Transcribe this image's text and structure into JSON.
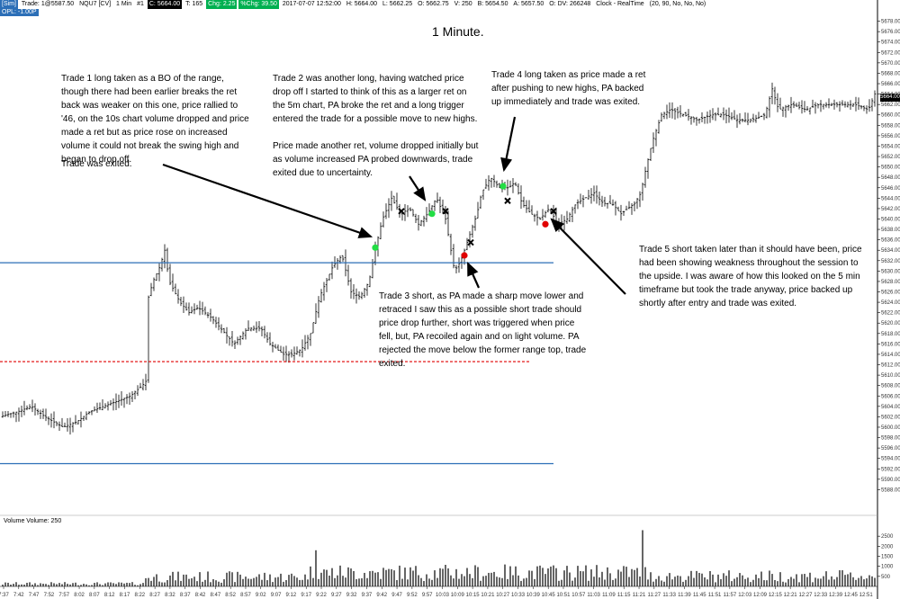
{
  "header": {
    "instrument_tag": "[Sim]",
    "trade_label": "Trade: 1@5587.50",
    "symbol_label": "NQU7 [CV]",
    "interval": "1 Min",
    "sep": "#1",
    "close": "C: 5664.00",
    "ticks": "T: 165",
    "chg": "Chg: 2.25",
    "pchg": "%Chg: 39.50",
    "date": "2017-07-07 12:52:00",
    "high": "H: 5664.00",
    "low": "L: 5662.25",
    "open": "O: 5662.75",
    "vol": "V: 250",
    "bid": "B: 5654.50",
    "ask": "A: 5657.50",
    "dv": "O: DV: 266248",
    "clock": "Clock - RealTime",
    "params": "(20, 90, No, No, No)",
    "pnl": "OPL: -1.00P"
  },
  "title": "1 Minute.",
  "annotations": {
    "trade1": "Trade 1 long taken as a BO of the range, though there had been earlier breaks the ret back was weaker on this one, price rallied to '46, on the 10s chart volume dropped and price made a ret but as price rose on increased volume it could not break the swing high and began to drop off.",
    "trade1_exit": "Trade was exited.",
    "trade2": "Trade 2 was another long, having watched price drop off I started to think of this as a larger ret on the 5m chart, PA broke the ret and a long trigger entered the trade for a possible move to new highs.",
    "trade2_b": "Price made another ret, volume dropped initially but as volume increased PA probed downwards, trade exited due to uncertainty.",
    "trade3": "Trade 3 short, as PA made a sharp move lower and retraced I saw this as a possible short trade should price drop further, short was triggered when price fell, but, PA recoiled again and on light volume.  PA rejected the move below the former range top, trade exited.",
    "trade4": "Trade 4 long taken as price made a ret after pushing to new highs, PA backed up immediately and trade was exited.",
    "trade5": "Trade 5 short taken later than it should have been, price had been showing weakness throughout the session to the upside.  I was aware of how this looked on the 5 min timeframe but took the trade anyway, price backed up shortly after entry and trade was exited."
  },
  "volume_label": "Volume  Volume: 250",
  "last_price_tag": "5664.00",
  "colors": {
    "bars": "#000000",
    "level_line": "#2c6fb7",
    "dashed_line": "#e00000",
    "long_entry": "#22dd44",
    "short_entry": "#e00000",
    "exit_marker": "#000000"
  },
  "chart_data": {
    "type": "ohlc",
    "price_axis": {
      "ylim": [
        5586,
        5680
      ],
      "ticks": [
        "5678.00",
        "5676.00",
        "5674.00",
        "5672.00",
        "5670.00",
        "5668.00",
        "5666.00",
        "5664.00",
        "5662.00",
        "5660.00",
        "5658.00",
        "5656.00",
        "5654.00",
        "5652.00",
        "5650.00",
        "5648.00",
        "5646.00",
        "5644.00",
        "5642.00",
        "5640.00",
        "5638.00",
        "5636.00",
        "5634.00",
        "5632.00",
        "5630.00",
        "5628.00",
        "5626.00",
        "5624.00",
        "5622.00",
        "5620.00",
        "5618.00",
        "5616.00",
        "5614.00",
        "5612.00",
        "5610.00",
        "5608.00",
        "5606.00",
        "5604.00",
        "5602.00",
        "5600.00",
        "5598.00",
        "5596.00",
        "5594.00",
        "5592.00",
        "5590.00",
        "5588.00"
      ]
    },
    "time_axis": [
      "7:37",
      "7:42",
      "7:47",
      "7:52",
      "7:57",
      "8:02",
      "8:07",
      "8:12",
      "8:17",
      "8:22",
      "8:27",
      "8:32",
      "8:37",
      "8:42",
      "8:47",
      "8:52",
      "8:57",
      "9:02",
      "9:07",
      "9:12",
      "9:17",
      "9:22",
      "9:27",
      "9:32",
      "9:37",
      "9:42",
      "9:47",
      "9:52",
      "9:57",
      "10:03",
      "10:09",
      "10:15",
      "10:21",
      "10:27",
      "10:33",
      "10:39",
      "10:45",
      "10:51",
      "10:57",
      "11:03",
      "11:09",
      "11:15",
      "11:21",
      "11:27",
      "11:33",
      "11:39",
      "11:45",
      "11:51",
      "11:57",
      "12:03",
      "12:09",
      "12:15",
      "12:21",
      "12:27",
      "12:33",
      "12:39",
      "12:45",
      "12:51"
    ],
    "close_path": [
      [
        0,
        5602
      ],
      [
        20,
        5603
      ],
      [
        35,
        5604
      ],
      [
        50,
        5602
      ],
      [
        70,
        5600
      ],
      [
        85,
        5601
      ],
      [
        100,
        5603
      ],
      [
        115,
        5604
      ],
      [
        130,
        5605
      ],
      [
        145,
        5606
      ],
      [
        158,
        5608
      ],
      [
        163,
        5609
      ],
      [
        165,
        5625
      ],
      [
        170,
        5628
      ],
      [
        178,
        5631
      ],
      [
        183,
        5634
      ],
      [
        188,
        5628
      ],
      [
        200,
        5624
      ],
      [
        210,
        5622
      ],
      [
        220,
        5623
      ],
      [
        235,
        5621
      ],
      [
        250,
        5618
      ],
      [
        260,
        5616
      ],
      [
        275,
        5619
      ],
      [
        290,
        5619
      ],
      [
        300,
        5616
      ],
      [
        315,
        5614
      ],
      [
        325,
        5614
      ],
      [
        335,
        5615
      ],
      [
        345,
        5618
      ],
      [
        355,
        5625
      ],
      [
        370,
        5631
      ],
      [
        380,
        5633
      ],
      [
        390,
        5626
      ],
      [
        400,
        5625
      ],
      [
        410,
        5628
      ],
      [
        418,
        5635
      ],
      [
        425,
        5640
      ],
      [
        435,
        5644
      ],
      [
        445,
        5641
      ],
      [
        455,
        5642
      ],
      [
        465,
        5639
      ],
      [
        475,
        5641
      ],
      [
        485,
        5644
      ],
      [
        495,
        5640
      ],
      [
        505,
        5630
      ],
      [
        512,
        5632
      ],
      [
        520,
        5636
      ],
      [
        530,
        5641
      ],
      [
        535,
        5645
      ],
      [
        545,
        5648
      ],
      [
        555,
        5646
      ],
      [
        565,
        5646
      ],
      [
        572,
        5647
      ],
      [
        580,
        5643
      ],
      [
        590,
        5641
      ],
      [
        600,
        5640
      ],
      [
        610,
        5642
      ],
      [
        620,
        5639
      ],
      [
        630,
        5640
      ],
      [
        640,
        5643
      ],
      [
        650,
        5644
      ],
      [
        660,
        5645
      ],
      [
        670,
        5643
      ],
      [
        680,
        5643
      ],
      [
        690,
        5641
      ],
      [
        705,
        5643
      ],
      [
        712,
        5645
      ],
      [
        718,
        5650
      ],
      [
        725,
        5655
      ],
      [
        735,
        5660
      ],
      [
        745,
        5661
      ],
      [
        760,
        5660
      ],
      [
        775,
        5659
      ],
      [
        790,
        5660
      ],
      [
        805,
        5660
      ],
      [
        820,
        5659
      ],
      [
        835,
        5659
      ],
      [
        850,
        5660
      ],
      [
        858,
        5665
      ],
      [
        865,
        5661
      ],
      [
        880,
        5662
      ],
      [
        895,
        5661
      ],
      [
        910,
        5662
      ],
      [
        930,
        5662
      ],
      [
        950,
        5662
      ],
      [
        965,
        5661
      ],
      [
        972,
        5664
      ]
    ],
    "horizontal_lines": [
      {
        "price": 5631.6,
        "style": "solid",
        "x_end": 615
      },
      {
        "price": 5612.6,
        "style": "dashed",
        "x_end": 590
      },
      {
        "price": 5593.0,
        "style": "solid",
        "x_end": 615
      }
    ],
    "markers": [
      {
        "label": "Trade 1 entry",
        "kind": "long",
        "time_x": 417,
        "price": 5634.5
      },
      {
        "label": "Trade 1 exit",
        "kind": "exit",
        "time_x": 446,
        "price": 5641.5
      },
      {
        "label": "Trade 2 entry",
        "kind": "long",
        "time_x": 480,
        "price": 5641.0
      },
      {
        "label": "Trade 2 exit",
        "kind": "exit",
        "time_x": 495,
        "price": 5641.5
      },
      {
        "label": "Trade 3 entry",
        "kind": "short",
        "time_x": 516,
        "price": 5633.0
      },
      {
        "label": "Trade 3 exit",
        "kind": "exit",
        "time_x": 523,
        "price": 5635.5
      },
      {
        "label": "Trade 4 entry",
        "kind": "long",
        "time_x": 559,
        "price": 5646.3
      },
      {
        "label": "Trade 4 exit",
        "kind": "exit",
        "time_x": 564,
        "price": 5643.5
      },
      {
        "label": "Trade 5 entry",
        "kind": "short",
        "time_x": 606,
        "price": 5639.0
      },
      {
        "label": "Trade 5 exit",
        "kind": "exit",
        "time_x": 615,
        "price": 5641.5
      }
    ],
    "volume": {
      "label": "Volume",
      "last": 250,
      "ylim": [
        0,
        3000
      ],
      "ticks": [
        "2500",
        "2000",
        "1500",
        "1000",
        "500"
      ]
    }
  }
}
